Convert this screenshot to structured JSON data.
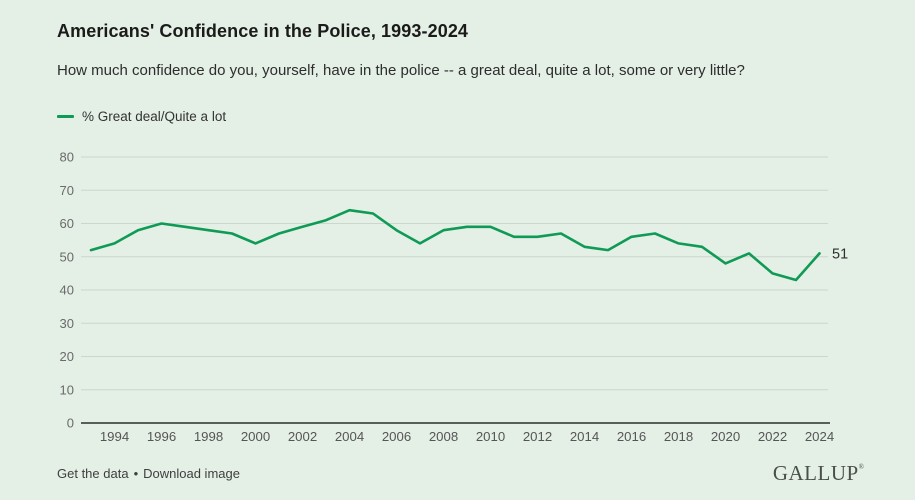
{
  "header": {
    "title": "Americans' Confidence in the Police, 1993-2024",
    "subtitle": "How much confidence do you, yourself, have in the police -- a great deal, quite a lot, some or very little?"
  },
  "legend": {
    "label": "% Great deal/Quite a lot"
  },
  "chart_data": {
    "type": "line",
    "title": "Americans' Confidence in the Police, 1993-2024",
    "xlabel": "",
    "ylabel": "",
    "xlim": [
      1993,
      2024
    ],
    "ylim": [
      0,
      80
    ],
    "y_ticks": [
      0,
      10,
      20,
      30,
      40,
      50,
      60,
      70,
      80
    ],
    "x_ticks": [
      1994,
      1996,
      1998,
      2000,
      2002,
      2004,
      2006,
      2008,
      2010,
      2012,
      2014,
      2016,
      2018,
      2020,
      2022,
      2024
    ],
    "grid": "horizontal",
    "legend_position": "top-left",
    "series": [
      {
        "name": "% Great deal/Quite a lot",
        "color": "#0f9a55",
        "x": [
          1993,
          1994,
          1995,
          1996,
          1997,
          1998,
          1999,
          2000,
          2001,
          2002,
          2003,
          2004,
          2005,
          2006,
          2007,
          2008,
          2009,
          2010,
          2011,
          2012,
          2013,
          2014,
          2015,
          2016,
          2017,
          2018,
          2019,
          2020,
          2021,
          2022,
          2023,
          2024
        ],
        "values": [
          52,
          54,
          58,
          60,
          59,
          58,
          57,
          54,
          57,
          59,
          61,
          64,
          63,
          58,
          54,
          58,
          59,
          59,
          56,
          56,
          57,
          53,
          52,
          56,
          57,
          54,
          53,
          48,
          51,
          45,
          43,
          51
        ]
      }
    ],
    "end_label": "51"
  },
  "footer": {
    "link_get_data": "Get the data",
    "separator": "•",
    "link_download": "Download image",
    "brand": "GALLUP",
    "brand_mark": "®"
  },
  "colors": {
    "background": "#e4efe6",
    "line": "#0f9a55",
    "gridline": "#ccd6cc",
    "baseline": "#2d2d2d",
    "y_axis_text": "#6a6a6a",
    "x_axis_text": "#555555",
    "title_text": "#1b1b1b",
    "end_label_text": "#2e2e2e"
  }
}
